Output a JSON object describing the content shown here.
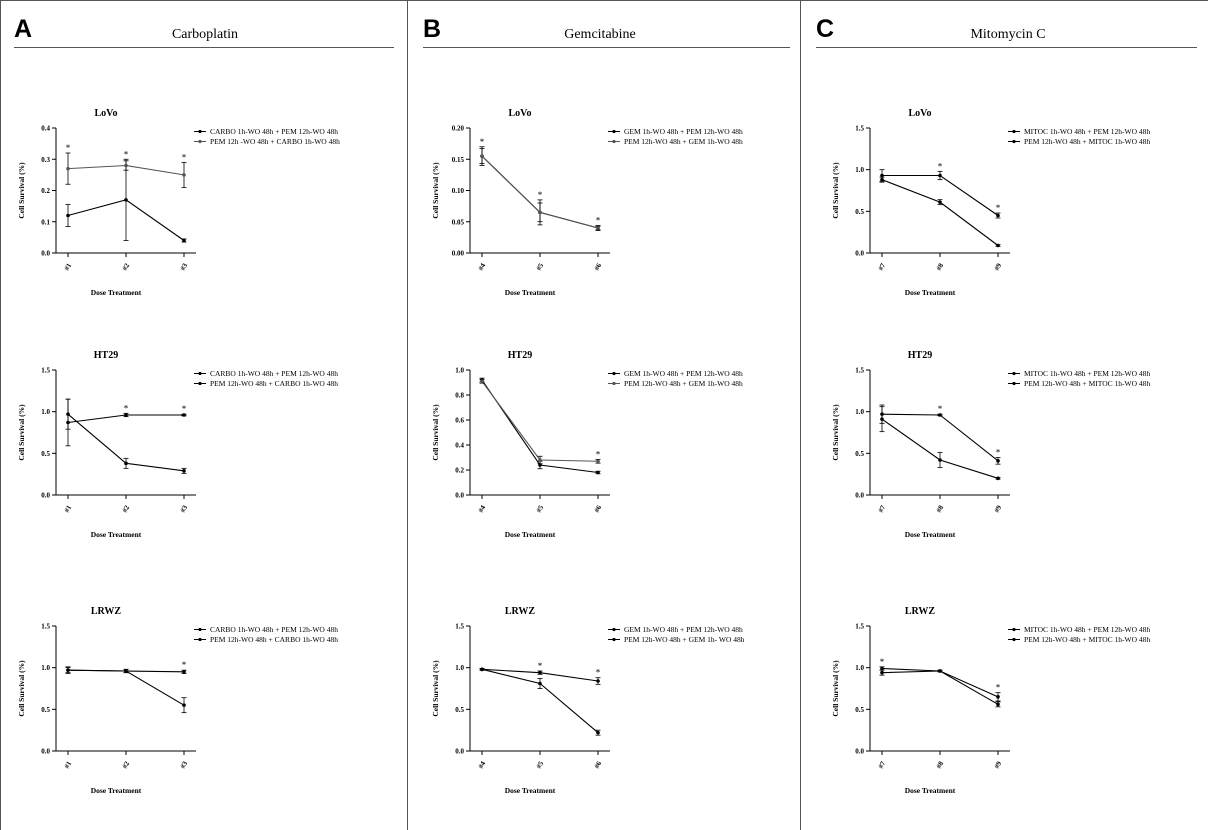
{
  "panels": [
    {
      "letter": "A",
      "title": "Carboplatin"
    },
    {
      "letter": "B",
      "title": "Gemcitabine"
    },
    {
      "letter": "C",
      "title": "Mitomycin C"
    }
  ],
  "chart_data": [
    {
      "type": "line",
      "panel": "A",
      "title": "LoVo",
      "xlabel": "Dose Treatment",
      "ylabel": "Cell Survival (%)",
      "categories": [
        "#1",
        "#2",
        "#3"
      ],
      "ylim": [
        0,
        0.4
      ],
      "yticks": [
        "0.0",
        "0.1",
        "0.2",
        "0.3",
        "0.4"
      ],
      "series": [
        {
          "name": "CARBO 1h-WO 48h + PEM 12h-WO 48h",
          "values": [
            0.12,
            0.17,
            0.04
          ],
          "errors": [
            0.035,
            0.13,
            0.005
          ],
          "color": "#000000"
        },
        {
          "name": "PEM 12h -WO 48h + CARBO 1h-WO 48h",
          "values": [
            0.27,
            0.28,
            0.25
          ],
          "errors": [
            0.05,
            0.015,
            0.04
          ],
          "color": "#555555"
        }
      ],
      "stars": [
        "*",
        "*",
        "*"
      ]
    },
    {
      "type": "line",
      "panel": "A",
      "title": "HT29",
      "xlabel": "Dose Treatment",
      "ylabel": "Cell Survival (%)",
      "categories": [
        "#1",
        "#2",
        "#3"
      ],
      "ylim": [
        0,
        1.5
      ],
      "yticks": [
        "0.0",
        "0.5",
        "1.0",
        "1.5"
      ],
      "series": [
        {
          "name": "CARBO 1h-WO 48h + PEM 12h-WO 48h",
          "values": [
            0.97,
            0.38,
            0.29
          ],
          "errors": [
            0.18,
            0.06,
            0.03
          ],
          "color": "#000000"
        },
        {
          "name": "PEM 12h-WO 48h + CARBO 1h-WO 48h",
          "values": [
            0.87,
            0.96,
            0.96
          ],
          "errors": [
            0.28,
            0.02,
            0.01
          ],
          "color": "#000000"
        }
      ],
      "stars": [
        "",
        "*",
        "*"
      ]
    },
    {
      "type": "line",
      "panel": "A",
      "title": "LRWZ",
      "xlabel": "Dose Treatment",
      "ylabel": "Cell Survival (%)",
      "categories": [
        "#1",
        "#2",
        "#3"
      ],
      "ylim": [
        0,
        1.5
      ],
      "yticks": [
        "0.0",
        "0.5",
        "1.0",
        "1.5"
      ],
      "series": [
        {
          "name": "CARBO 1h-WO 48h + PEM 12h-WO 48h",
          "values": [
            0.97,
            0.96,
            0.55
          ],
          "errors": [
            0.04,
            0.02,
            0.09
          ],
          "color": "#000000"
        },
        {
          "name": "PEM 12h-WO 48h + CARBO 1h-WO 48h",
          "values": [
            0.97,
            0.96,
            0.95
          ],
          "errors": [
            0.03,
            0.02,
            0.02
          ],
          "color": "#000000"
        }
      ],
      "stars": [
        "",
        "",
        "*"
      ]
    },
    {
      "type": "line",
      "panel": "B",
      "title": "LoVo",
      "xlabel": "Dose Treatment",
      "ylabel": "Cell Survival (%)",
      "categories": [
        "#4",
        "#5",
        "#6"
      ],
      "ylim": [
        0,
        0.2
      ],
      "yticks": [
        "0.00",
        "0.05",
        "0.10",
        "0.15",
        "0.20"
      ],
      "series": [
        {
          "name": "GEM 1h-WO 48h + PEM 12h-WO 48h",
          "values": [
            0.155,
            0.065,
            0.04
          ],
          "errors": [
            0.015,
            0.02,
            0.004
          ],
          "color": "#000000"
        },
        {
          "name": "PEM 12h-WO 48h + GEM 1h-WO 48h",
          "values": [
            0.155,
            0.065,
            0.04
          ],
          "errors": [
            0.012,
            0.015,
            0.003
          ],
          "color": "#555555"
        }
      ],
      "stars": [
        "*",
        "*",
        "*"
      ]
    },
    {
      "type": "line",
      "panel": "B",
      "title": "HT29",
      "xlabel": "Dose Treatment",
      "ylabel": "Cell Survival (%)",
      "categories": [
        "#4",
        "#5",
        "#6"
      ],
      "ylim": [
        0,
        1.0
      ],
      "yticks": [
        "0.0",
        "0.2",
        "0.4",
        "0.6",
        "0.8",
        "1.0"
      ],
      "series": [
        {
          "name": "GEM 1h-WO 48h + PEM 12h-WO 48h",
          "values": [
            0.92,
            0.24,
            0.18
          ],
          "errors": [
            0.015,
            0.03,
            0.01
          ],
          "color": "#000000"
        },
        {
          "name": "PEM 12h-WO 48h + GEM 1h-WO 48h",
          "values": [
            0.91,
            0.28,
            0.27
          ],
          "errors": [
            0.015,
            0.03,
            0.015
          ],
          "color": "#555555"
        }
      ],
      "stars": [
        "",
        "",
        "*"
      ]
    },
    {
      "type": "line",
      "panel": "B",
      "title": "LRWZ",
      "xlabel": "Dose Treatment",
      "ylabel": "Cell Survival (%)",
      "categories": [
        "#4",
        "#5",
        "#6"
      ],
      "ylim": [
        0,
        1.5
      ],
      "yticks": [
        "0.0",
        "0.5",
        "1.0",
        "1.5"
      ],
      "series": [
        {
          "name": "GEM 1h-WO 48h + PEM 12h-WO 48h",
          "values": [
            0.98,
            0.81,
            0.22
          ],
          "errors": [
            0.01,
            0.06,
            0.03
          ],
          "color": "#000000"
        },
        {
          "name": "PEM 12h-WO 48h + GEM 1h- WO 48h",
          "values": [
            0.98,
            0.94,
            0.84
          ],
          "errors": [
            0.01,
            0.02,
            0.04
          ],
          "color": "#000000"
        }
      ],
      "stars": [
        "",
        "*",
        "*"
      ]
    },
    {
      "type": "line",
      "panel": "C",
      "title": "LoVo",
      "xlabel": "Dose Treatment",
      "ylabel": "Cell Survival (%)",
      "categories": [
        "#7",
        "#8",
        "#9"
      ],
      "ylim": [
        0,
        1.5
      ],
      "yticks": [
        "0.0",
        "0.5",
        "1.0",
        "1.5"
      ],
      "series": [
        {
          "name": "MITOC 1h-WO 48h + PEM 12h-WO 48h",
          "values": [
            0.88,
            0.61,
            0.09
          ],
          "errors": [
            0.03,
            0.03,
            0.01
          ],
          "color": "#000000"
        },
        {
          "name": "PEM 12h-WO 48h + MITOC 1h-WO 48h",
          "values": [
            0.93,
            0.93,
            0.45
          ],
          "errors": [
            0.07,
            0.05,
            0.03
          ],
          "color": "#000000"
        }
      ],
      "stars": [
        "",
        "*",
        "*"
      ]
    },
    {
      "type": "line",
      "panel": "C",
      "title": "HT29",
      "xlabel": "Dose Treatment",
      "ylabel": "Cell Survival (%)",
      "categories": [
        "#7",
        "#8",
        "#9"
      ],
      "ylim": [
        0,
        1.5
      ],
      "yticks": [
        "0.0",
        "0.5",
        "1.0",
        "1.5"
      ],
      "series": [
        {
          "name": "MITOC 1h-WO 48h + PEM 12h-WO 48h",
          "values": [
            0.91,
            0.42,
            0.2
          ],
          "errors": [
            0.15,
            0.09,
            0.01
          ],
          "color": "#000000"
        },
        {
          "name": "PEM 12h-WO 48h + MITOC 1h-WO 48h",
          "values": [
            0.97,
            0.96,
            0.41
          ],
          "errors": [
            0.11,
            0.01,
            0.04
          ],
          "color": "#000000"
        }
      ],
      "stars": [
        "",
        "*",
        "*"
      ]
    },
    {
      "type": "line",
      "panel": "C",
      "title": "LRWZ",
      "xlabel": "Dose Treatment",
      "ylabel": "Cell Survival (%)",
      "categories": [
        "#7",
        "#8",
        "#9"
      ],
      "ylim": [
        0,
        1.5
      ],
      "yticks": [
        "0.0",
        "0.5",
        "1.0",
        "1.5"
      ],
      "series": [
        {
          "name": "MITOC 1h-WO 48h + PEM 12h-WO 48h",
          "values": [
            0.94,
            0.96,
            0.65
          ],
          "errors": [
            0.03,
            0.01,
            0.05
          ],
          "color": "#000000"
        },
        {
          "name": "PEM 12h-WO 48h + MITOC 1h-WO 48h",
          "values": [
            0.99,
            0.96,
            0.56
          ],
          "errors": [
            0.02,
            0.01,
            0.03
          ],
          "color": "#000000"
        }
      ],
      "stars": [
        "*",
        "",
        "*"
      ]
    }
  ]
}
